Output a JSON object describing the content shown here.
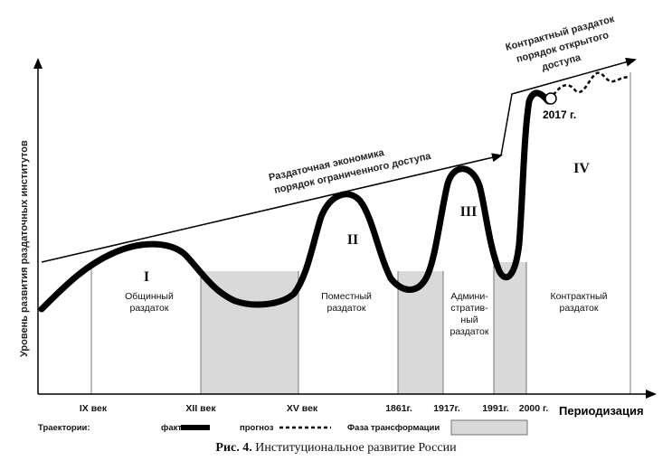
{
  "y_axis_label": "Уровень развития раздаточных институтов",
  "x_axis_label": "Периодизация",
  "ticks": [
    "IX век",
    "XII век",
    "XV век",
    "1861г.",
    "1917г.",
    "1991г.",
    "2000 г."
  ],
  "trend_limited": {
    "line1": "Раздаточная экономика",
    "line2": "порядок ограниченного доступа"
  },
  "trend_open": {
    "line1": "Контрактный раздаток",
    "line2": "порядок открытого",
    "line3": "доступа"
  },
  "eras": [
    {
      "numeral": "I",
      "lines": [
        "Общинный",
        "раздаток"
      ]
    },
    {
      "numeral": "II",
      "lines": [
        "Поместный",
        "раздаток"
      ]
    },
    {
      "numeral": "III",
      "lines": [
        "Админи-",
        "стратив-",
        "ный",
        "раздаток"
      ]
    },
    {
      "numeral": "IV",
      "lines": [
        "Контрактный",
        "раздаток"
      ]
    }
  ],
  "marker_2017": "2017 г.",
  "legend": {
    "title": "Траектории:",
    "fact": "факт",
    "forecast": "прогноз",
    "transformation": "Фаза трансформации"
  },
  "caption": {
    "prefix": "Рис. 4.",
    "text": " Институциональное развитие России"
  },
  "colors": {
    "shade": "#d9d9d9",
    "line": "#000000"
  }
}
